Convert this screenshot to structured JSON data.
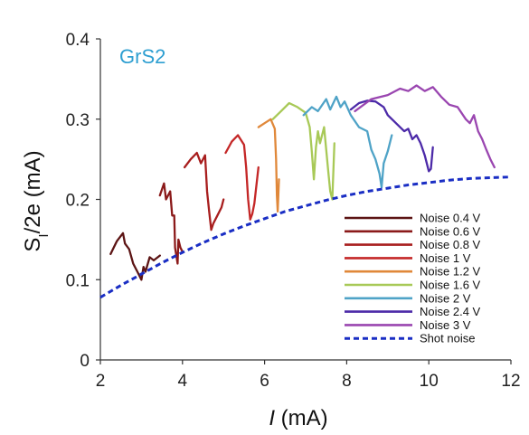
{
  "chart_data": {
    "type": "line",
    "annotation": "GrS2",
    "xlabel": {
      "italic": "I",
      "rest": " (mA)"
    },
    "ylabel": {
      "base": "S",
      "sub": "I",
      "rest": "/2e (mA)"
    },
    "xlim": [
      2,
      12
    ],
    "ylim": [
      0,
      0.4
    ],
    "xticks": [
      2,
      4,
      6,
      8,
      10,
      12
    ],
    "xtick_labels": [
      "2",
      "4",
      "6",
      "8",
      "10",
      "12"
    ],
    "yticks": [
      0,
      0.1,
      0.2,
      0.3,
      0.4
    ],
    "ytick_labels": [
      "0",
      "0.1",
      "0.2",
      "0.3",
      "0.4"
    ],
    "grid": false,
    "legend_position": "bottom-right",
    "colors": {
      "annotation": "#2e9fd1",
      "axis": "#333333"
    },
    "series": [
      {
        "name": "Noise 0.4 V",
        "color": "#5c1414",
        "style": "solid",
        "x": [
          2.25,
          2.4,
          2.55,
          2.6,
          2.7,
          2.8,
          2.9,
          3.0,
          3.05,
          3.1,
          3.2,
          3.3,
          3.45
        ],
        "y": [
          0.132,
          0.148,
          0.158,
          0.145,
          0.138,
          0.12,
          0.11,
          0.1,
          0.116,
          0.11,
          0.128,
          0.124,
          0.13
        ]
      },
      {
        "name": "Noise 0.6 V",
        "color": "#8b1a1a",
        "style": "solid",
        "x": [
          3.45,
          3.55,
          3.6,
          3.7,
          3.75,
          3.8,
          3.82,
          3.88,
          3.9,
          3.95,
          4.0
        ],
        "y": [
          0.205,
          0.22,
          0.2,
          0.21,
          0.18,
          0.18,
          0.14,
          0.12,
          0.15,
          0.14,
          0.135
        ]
      },
      {
        "name": "Noise 0.8 V",
        "color": "#a81e1e",
        "style": "solid",
        "x": [
          4.05,
          4.2,
          4.35,
          4.45,
          4.55,
          4.6,
          4.65,
          4.7,
          4.75,
          4.85,
          4.95,
          5.0
        ],
        "y": [
          0.24,
          0.25,
          0.258,
          0.245,
          0.255,
          0.21,
          0.185,
          0.162,
          0.17,
          0.18,
          0.19,
          0.2
        ]
      },
      {
        "name": "Noise 1 V",
        "color": "#c42727",
        "style": "solid",
        "x": [
          5.05,
          5.2,
          5.35,
          5.5,
          5.55,
          5.6,
          5.65,
          5.7,
          5.75,
          5.85
        ],
        "y": [
          0.258,
          0.272,
          0.28,
          0.268,
          0.24,
          0.2,
          0.175,
          0.182,
          0.195,
          0.24
        ]
      },
      {
        "name": "Noise 1.2 V",
        "color": "#e0883a",
        "style": "solid",
        "x": [
          5.85,
          6.0,
          6.15,
          6.25,
          6.28,
          6.3,
          6.32,
          6.35
        ],
        "y": [
          0.29,
          0.295,
          0.3,
          0.288,
          0.25,
          0.205,
          0.185,
          0.225
        ]
      },
      {
        "name": "Noise 1.6 V",
        "color": "#a8c957",
        "style": "solid",
        "x": [
          6.2,
          6.4,
          6.6,
          6.8,
          7.0,
          7.1,
          7.15,
          7.2,
          7.25,
          7.3,
          7.35,
          7.45,
          7.55,
          7.6,
          7.65,
          7.7
        ],
        "y": [
          0.3,
          0.31,
          0.32,
          0.315,
          0.308,
          0.29,
          0.26,
          0.225,
          0.265,
          0.285,
          0.27,
          0.29,
          0.235,
          0.21,
          0.2,
          0.27
        ]
      },
      {
        "name": "Noise 2 V",
        "color": "#4fa3c7",
        "style": "solid",
        "x": [
          6.95,
          7.15,
          7.3,
          7.5,
          7.6,
          7.75,
          7.85,
          7.95,
          8.1,
          8.3,
          8.5,
          8.6,
          8.7,
          8.8,
          8.85,
          8.9,
          9.0,
          9.1
        ],
        "y": [
          0.305,
          0.315,
          0.31,
          0.325,
          0.312,
          0.328,
          0.315,
          0.322,
          0.305,
          0.29,
          0.285,
          0.262,
          0.25,
          0.232,
          0.215,
          0.245,
          0.26,
          0.28
        ]
      },
      {
        "name": "Noise 2.4 V",
        "color": "#4c2aa8",
        "style": "solid",
        "x": [
          8.1,
          8.3,
          8.5,
          8.7,
          8.9,
          9.0,
          9.2,
          9.4,
          9.5,
          9.6,
          9.7,
          9.8,
          9.9,
          10.0,
          10.05,
          10.1
        ],
        "y": [
          0.312,
          0.32,
          0.323,
          0.322,
          0.315,
          0.305,
          0.295,
          0.285,
          0.288,
          0.275,
          0.28,
          0.27,
          0.255,
          0.235,
          0.238,
          0.265
        ]
      },
      {
        "name": "Noise 3 V",
        "color": "#9a46b0",
        "style": "solid",
        "x": [
          8.2,
          8.6,
          9.0,
          9.3,
          9.5,
          9.7,
          9.9,
          10.1,
          10.3,
          10.5,
          10.7,
          10.9,
          11.0,
          11.1,
          11.2,
          11.3,
          11.4,
          11.5,
          11.6
        ],
        "y": [
          0.31,
          0.325,
          0.33,
          0.338,
          0.335,
          0.342,
          0.335,
          0.34,
          0.328,
          0.318,
          0.315,
          0.3,
          0.295,
          0.305,
          0.285,
          0.275,
          0.262,
          0.25,
          0.24
        ]
      },
      {
        "name": "Shot noise",
        "color": "#1a2ec4",
        "style": "dashed",
        "x": [
          2.0,
          2.5,
          3.0,
          3.5,
          4.0,
          4.5,
          5.0,
          5.5,
          6.0,
          6.5,
          7.0,
          7.5,
          8.0,
          8.5,
          9.0,
          9.5,
          10.0,
          10.5,
          11.0,
          11.5,
          12.0
        ],
        "y": [
          0.078,
          0.093,
          0.107,
          0.121,
          0.134,
          0.146,
          0.157,
          0.167,
          0.176,
          0.185,
          0.192,
          0.199,
          0.205,
          0.21,
          0.214,
          0.218,
          0.221,
          0.224,
          0.226,
          0.227,
          0.228
        ]
      }
    ]
  }
}
